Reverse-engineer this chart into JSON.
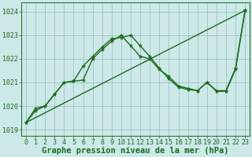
{
  "line1": [
    1019.3,
    1019.8,
    1020.0,
    1020.5,
    1021.0,
    1021.05,
    1021.7,
    1022.1,
    1022.5,
    1022.85,
    1022.9,
    1023.0,
    1022.55,
    1022.1,
    1021.6,
    1021.15,
    1020.8,
    1020.7,
    1020.65,
    1021.0,
    1020.65,
    1020.65,
    1021.6,
    1024.05
  ],
  "line2": [
    1019.3,
    1019.9,
    1020.0,
    1020.5,
    1021.0,
    1021.05,
    1021.1,
    1022.0,
    1022.4,
    1022.75,
    1023.0,
    1022.55,
    1022.1,
    1022.0,
    1021.55,
    1021.25,
    1020.85,
    1020.75,
    1020.65,
    1021.0,
    1020.62,
    1020.62,
    1021.55,
    1024.05
  ],
  "line3_x": [
    0,
    23
  ],
  "line3_y": [
    1019.3,
    1024.05
  ],
  "x_ticks": [
    0,
    1,
    2,
    3,
    4,
    5,
    6,
    7,
    8,
    9,
    10,
    11,
    12,
    13,
    14,
    15,
    16,
    17,
    18,
    19,
    20,
    21,
    22,
    23
  ],
  "y_ticks": [
    1019,
    1020,
    1021,
    1022,
    1023,
    1024
  ],
  "ylim": [
    1018.75,
    1024.4
  ],
  "xlim": [
    -0.5,
    23.5
  ],
  "bg_color": "#cce8e8",
  "grid_color": "#99bbbb",
  "line_color": "#1a6b1a",
  "marker": "*",
  "markersize": 3.5,
  "linewidth": 1.0,
  "xlabel": "Graphe pression niveau de la mer (hPa)",
  "xlabel_fontsize": 7.5,
  "tick_fontsize": 6.0,
  "fig_width": 3.2,
  "fig_height": 2.0,
  "dpi": 100
}
